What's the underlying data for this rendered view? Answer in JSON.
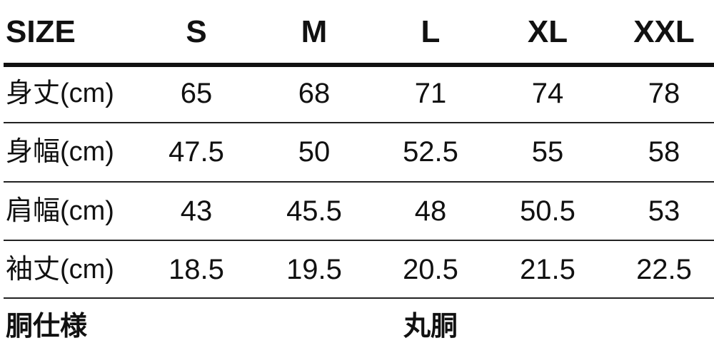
{
  "header": {
    "label": "SIZE",
    "sizes": [
      "S",
      "M",
      "L",
      "XL",
      "XXL"
    ]
  },
  "rows": [
    {
      "label": "身丈(cm)",
      "values": [
        "65",
        "68",
        "71",
        "74",
        "78"
      ]
    },
    {
      "label": "身幅(cm)",
      "values": [
        "47.5",
        "50",
        "52.5",
        "55",
        "58"
      ]
    },
    {
      "label": "肩幅(cm)",
      "values": [
        "43",
        "45.5",
        "48",
        "50.5",
        "53"
      ]
    },
    {
      "label": "袖丈(cm)",
      "values": [
        "18.5",
        "19.5",
        "20.5",
        "21.5",
        "22.5"
      ]
    }
  ],
  "body_type": {
    "label": "胴仕様",
    "value": "丸胴"
  }
}
